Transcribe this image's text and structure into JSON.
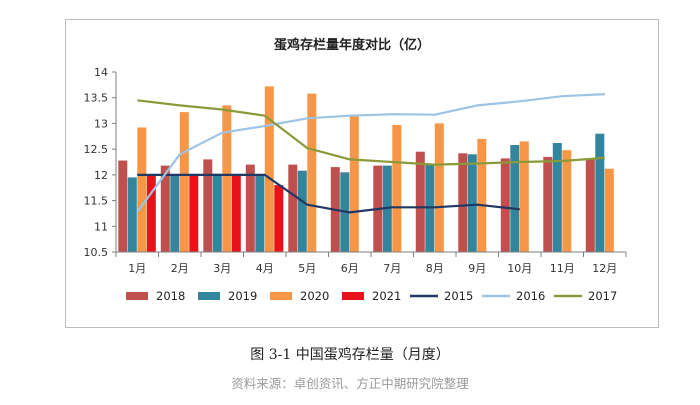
{
  "figure": {
    "caption": "图 3-1 中国蛋鸡存栏量（月度）",
    "source": "资料来源：卓创资讯、方正中期研究院整理"
  },
  "chart_data": {
    "type": "bar",
    "title": "蛋鸡存栏量年度对比（亿）",
    "categories": [
      "1月",
      "2月",
      "3月",
      "4月",
      "5月",
      "6月",
      "7月",
      "8月",
      "9月",
      "10月",
      "11月",
      "12月"
    ],
    "ylim": [
      10.5,
      14
    ],
    "yticks": [
      "10.5",
      "11",
      "11.5",
      "12",
      "12.5",
      "13",
      "13.5",
      "14"
    ],
    "grid": false,
    "legend_position": "bottom",
    "bar_series": [
      {
        "name": "2018",
        "color": "#c0504d",
        "values": [
          12.28,
          12.18,
          12.3,
          12.2,
          12.2,
          12.15,
          12.18,
          12.45,
          12.42,
          12.32,
          12.35,
          12.3
        ]
      },
      {
        "name": "2019",
        "color": "#31859c",
        "values": [
          11.95,
          12.0,
          12.02,
          12.0,
          12.08,
          12.05,
          12.18,
          12.2,
          12.4,
          12.58,
          12.62,
          12.8
        ]
      },
      {
        "name": "2020",
        "color": "#f79646",
        "values": [
          12.92,
          13.22,
          13.35,
          13.72,
          13.58,
          13.15,
          12.97,
          13.0,
          12.7,
          12.65,
          12.48,
          12.12
        ]
      },
      {
        "name": "2021",
        "color": "#e8131a",
        "values": [
          12.0,
          12.0,
          12.0,
          11.8,
          null,
          null,
          null,
          null,
          null,
          null,
          null,
          null
        ]
      }
    ],
    "line_series": [
      {
        "name": "2015",
        "color": "#1f3864",
        "values": [
          12.0,
          12.0,
          12.0,
          12.0,
          11.42,
          11.27,
          11.37,
          11.37,
          11.42,
          11.33,
          null,
          null
        ]
      },
      {
        "name": "2016",
        "color": "#9dc3e6",
        "values": [
          11.28,
          12.4,
          12.82,
          12.95,
          13.1,
          13.15,
          13.18,
          13.17,
          13.35,
          13.43,
          13.53,
          13.57
        ]
      },
      {
        "name": "2017",
        "color": "#8a9a3b",
        "values": [
          13.45,
          13.35,
          13.27,
          13.15,
          12.52,
          12.3,
          12.25,
          12.2,
          12.22,
          12.25,
          12.27,
          12.33
        ]
      }
    ]
  }
}
